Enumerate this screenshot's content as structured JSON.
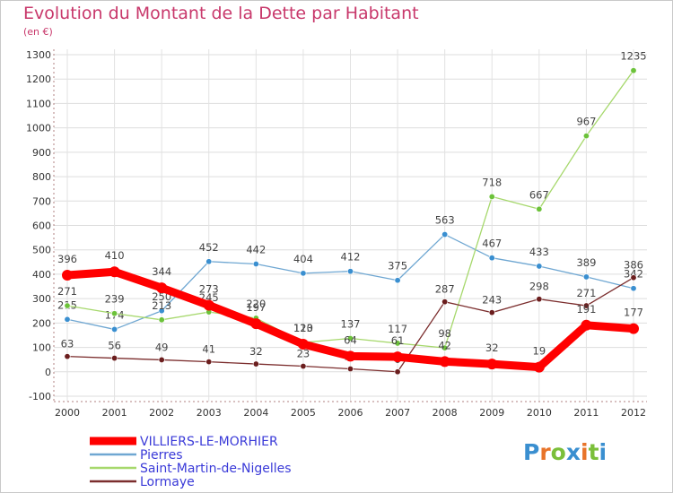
{
  "title": "Evolution du Montant de la Dette par Habitant",
  "subtitle": "(en €)",
  "logo": {
    "text": "Proxiti",
    "colors": [
      "#3a8fd0",
      "#e8742a",
      "#7bbf3a",
      "#3a8fd0",
      "#e8742a",
      "#7bbf3a",
      "#3a8fd0"
    ]
  },
  "chart_data": {
    "type": "line",
    "x": [
      "2000",
      "2001",
      "2002",
      "2003",
      "2004",
      "2005",
      "2006",
      "2007",
      "2008",
      "2009",
      "2010",
      "2011",
      "2012"
    ],
    "ylim": [
      -100,
      1300
    ],
    "yticks": [
      -100,
      0,
      100,
      200,
      300,
      400,
      500,
      600,
      700,
      800,
      900,
      1000,
      1100,
      1200,
      1300
    ],
    "grid": true,
    "legend_placement": "bottom-left",
    "series": [
      {
        "name": "Pierres",
        "color": "#6fa7d2",
        "marker_color": "#3a8fd0",
        "values": [
          215,
          174,
          250,
          452,
          442,
          404,
          412,
          375,
          563,
          467,
          433,
          389,
          342
        ],
        "labels": [
          "215",
          "174",
          "250",
          "452",
          "442",
          "404",
          "412",
          "375",
          "563",
          "467",
          "433",
          "389",
          "342"
        ]
      },
      {
        "name": "Saint-Martin-de-Nigelles",
        "color": "#a6d86c",
        "marker_color": "#6cc23a",
        "values": [
          271,
          239,
          213,
          245,
          220,
          120,
          137,
          117,
          98,
          718,
          667,
          967,
          1235
        ],
        "labels": [
          "271",
          "239",
          "213",
          "245",
          "220",
          "120",
          "137",
          "117",
          "98",
          "718",
          "667",
          "967",
          "1235"
        ]
      },
      {
        "name": "Lormaye",
        "color": "#7b2d2d",
        "marker_color": "#6b1e1e",
        "values": [
          63,
          56,
          49,
          41,
          32,
          23,
          12,
          0,
          287,
          243,
          298,
          271,
          386
        ],
        "labels": [
          "63",
          "56",
          "49",
          "41",
          "32",
          "23",
          "12",
          "0",
          "287",
          "243",
          "298",
          "271",
          "386"
        ]
      },
      {
        "name": "VILLIERS-LE-MORHIER",
        "color": "#ff0000",
        "marker_color": "#ff0000",
        "thick": true,
        "values": [
          396,
          410,
          344,
          273,
          197,
          113,
          64,
          61,
          42,
          32,
          19,
          191,
          177
        ],
        "labels": [
          "396",
          "410",
          "344",
          "273",
          "197",
          "113",
          "64",
          "61",
          "42",
          "32",
          "19",
          "191",
          "177"
        ]
      }
    ],
    "legend_order": [
      "VILLIERS-LE-MORHIER",
      "Pierres",
      "Saint-Martin-de-Nigelles",
      "Lormaye"
    ]
  }
}
